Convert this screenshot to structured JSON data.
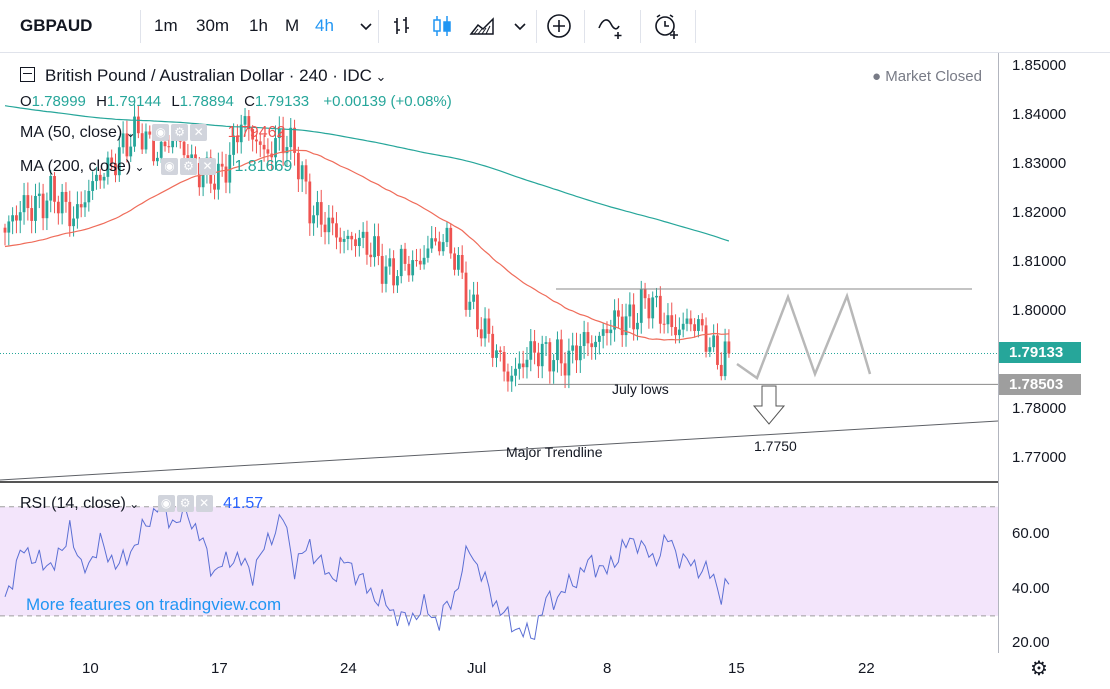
{
  "toolbar": {
    "symbol": "GBPAUD",
    "intervals": [
      "1m",
      "30m",
      "1h",
      "M",
      "4h"
    ],
    "active_interval": "4h",
    "icons": [
      "chevron-down-icon",
      "bar-chart-type-icon",
      "candlestick-icon",
      "area-chart-icon",
      "chevron-down-icon",
      "add-compare-icon",
      "indicators-icon",
      "alert-icon"
    ]
  },
  "header": {
    "title": "British Pound / Australian Dollar · 240 · IDC",
    "status": "● Market Closed",
    "ohlc": {
      "o_key": "O",
      "o": "1.78999",
      "h_key": "H",
      "h": "1.79144",
      "l_key": "L",
      "l": "1.78894",
      "c_key": "C",
      "c": "1.79133",
      "change": "+0.00139 (+0.08%)"
    },
    "ma50_label": "MA (50, close)",
    "ma50_value": "1.79462",
    "ma200_label": "MA (200, close)",
    "ma200_value": "1.81669"
  },
  "rsi": {
    "label": "RSI (14, close)",
    "value": "41.57"
  },
  "promo": "More features on tradingview.com",
  "colors": {
    "up": "#26a69a",
    "down": "#ef5350",
    "ma50": "#ef6c5a",
    "ma200": "#26a69a",
    "rsi": "#5b6fd4",
    "rsi_band": "#f3e5fb",
    "current_tag": "#26a69a",
    "level_tag": "#9e9e9e"
  },
  "chart_data": [
    {
      "type": "candlestick",
      "title": "British Pound / Australian Dollar · 240 · IDC",
      "x_ticks": [
        "10",
        "17",
        "24",
        "Jul",
        "8",
        "15",
        "22"
      ],
      "ylim": [
        1.765,
        1.852
      ],
      "y_ticks": [
        "1.85000",
        "1.84000",
        "1.83000",
        "1.82000",
        "1.81000",
        "1.80000",
        "1.79133",
        "1.78503",
        "1.78000",
        "1.77000"
      ],
      "price_tags": {
        "current": "1.79133",
        "level": "1.78503"
      },
      "anchors_close": [
        [
          0,
          1.816
        ],
        [
          6,
          1.822
        ],
        [
          12,
          1.823
        ],
        [
          18,
          1.82
        ],
        [
          24,
          1.826
        ],
        [
          30,
          1.833
        ],
        [
          36,
          1.836
        ],
        [
          40,
          1.833
        ],
        [
          44,
          1.834
        ],
        [
          48,
          1.832
        ],
        [
          52,
          1.828
        ],
        [
          56,
          1.826
        ],
        [
          60,
          1.834
        ],
        [
          62,
          1.84
        ],
        [
          64,
          1.836
        ],
        [
          68,
          1.832
        ],
        [
          72,
          1.836
        ],
        [
          76,
          1.832
        ],
        [
          80,
          1.822
        ],
        [
          84,
          1.818
        ],
        [
          88,
          1.814
        ],
        [
          92,
          1.816
        ],
        [
          96,
          1.812
        ],
        [
          100,
          1.808
        ],
        [
          104,
          1.81
        ],
        [
          108,
          1.808
        ],
        [
          112,
          1.815
        ],
        [
          116,
          1.814
        ],
        [
          120,
          1.806
        ],
        [
          124,
          1.799
        ],
        [
          128,
          1.792
        ],
        [
          132,
          1.787
        ],
        [
          136,
          1.79
        ],
        [
          140,
          1.791
        ],
        [
          144,
          1.792
        ],
        [
          148,
          1.789
        ],
        [
          152,
          1.794
        ],
        [
          156,
          1.795
        ],
        [
          160,
          1.797
        ],
        [
          164,
          1.799
        ],
        [
          168,
          1.802
        ],
        [
          172,
          1.799
        ],
        [
          176,
          1.797
        ],
        [
          180,
          1.797
        ],
        [
          184,
          1.795
        ],
        [
          188,
          1.79
        ],
        [
          190,
          1.791
        ]
      ],
      "series": [
        {
          "name": "MA (50, close)",
          "last": "1.79462"
        },
        {
          "name": "MA (200, close)",
          "last": "1.81669"
        }
      ],
      "annotations": {
        "july_lows": "July lows",
        "major_trendline": "Major Trendline",
        "target": "1.7750",
        "july_lows_level": 1.78503
      }
    },
    {
      "type": "line",
      "title": "RSI (14, close)",
      "ylim": [
        18,
        72
      ],
      "y_ticks": [
        "60.00",
        "40.00",
        "20.00"
      ],
      "band": [
        30,
        70
      ],
      "last": 41.57
    }
  ]
}
